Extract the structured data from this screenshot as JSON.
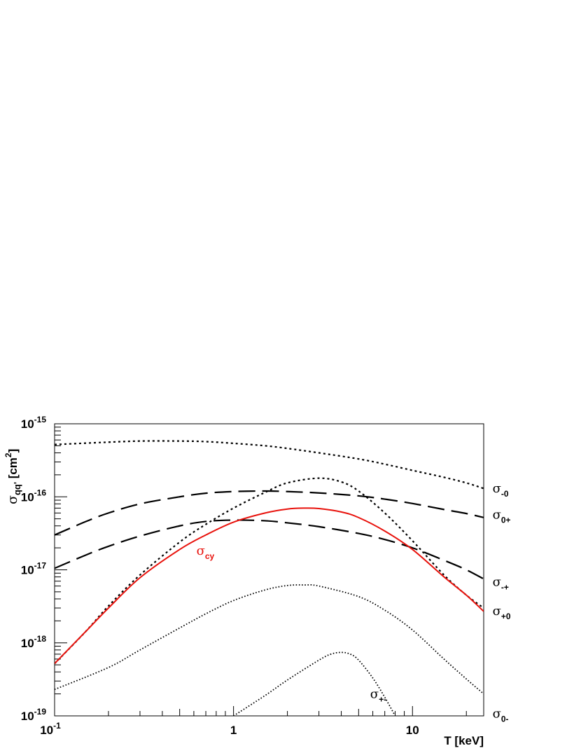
{
  "chart_data": {
    "type": "line",
    "title": "",
    "xlabel": "T [keV]",
    "ylabel": {
      "main": "σ",
      "sub": "qq'",
      "unit_prefix": " [cm",
      "unit_sup": "2",
      "unit_suffix": "]"
    },
    "x_scale": "log",
    "y_scale": "log",
    "xlim": [
      0.1,
      25
    ],
    "ylim": [
      1e-19,
      1e-15
    ],
    "grid": false,
    "x_tick_labels": [
      {
        "value": 0.1,
        "base": "10",
        "exp": "-1"
      },
      {
        "value": 1,
        "base": "1",
        "exp": ""
      },
      {
        "value": 10,
        "base": "10",
        "exp": ""
      }
    ],
    "y_tick_labels": [
      {
        "value": 1e-19,
        "base": "10",
        "exp": "-19"
      },
      {
        "value": 1e-18,
        "base": "10",
        "exp": "-18"
      },
      {
        "value": 1e-17,
        "base": "10",
        "exp": "-17"
      },
      {
        "value": 1e-16,
        "base": "10",
        "exp": "-16"
      },
      {
        "value": 1e-15,
        "base": "10",
        "exp": "-15"
      }
    ],
    "series": [
      {
        "id": "sigma-minus0",
        "label_main": "σ",
        "label_sub": "-0",
        "color": "#000000",
        "style": "dotted-short",
        "label_at": {
          "x": 28,
          "y": 1.15e-16
        },
        "x": [
          0.1,
          0.2,
          0.3,
          0.5,
          0.7,
          1,
          1.5,
          2,
          3,
          5,
          7,
          10,
          15,
          20,
          25
        ],
        "y": [
          5.2e-16,
          5.6e-16,
          5.8e-16,
          5.8e-16,
          5.7e-16,
          5.4e-16,
          5e-16,
          4.6e-16,
          4e-16,
          3.3e-16,
          2.8e-16,
          2.3e-16,
          1.85e-16,
          1.55e-16,
          1.3e-16
        ]
      },
      {
        "id": "sigma-0plus",
        "label_main": "σ",
        "label_sub": "0+",
        "color": "#000000",
        "style": "long-dash",
        "label_at": {
          "x": 28,
          "y": 5e-17
        },
        "x": [
          0.1,
          0.15,
          0.2,
          0.3,
          0.5,
          0.7,
          1,
          1.5,
          2,
          3,
          5,
          7,
          10,
          15,
          20,
          25
        ],
        "y": [
          3e-17,
          4.6e-17,
          6e-17,
          8e-17,
          1e-16,
          1.12e-16,
          1.18e-16,
          1.2e-16,
          1.18e-16,
          1.13e-16,
          1.03e-16,
          9.3e-17,
          8.1e-17,
          6.7e-17,
          5.9e-17,
          5.2e-17
        ]
      },
      {
        "id": "sigma-minusplus",
        "label_main": "σ",
        "label_sub": "-+",
        "color": "#000000",
        "style": "long-dash",
        "label_at": {
          "x": 28,
          "y": 6e-18
        },
        "x": [
          0.1,
          0.15,
          0.2,
          0.3,
          0.5,
          0.7,
          1,
          1.5,
          2,
          3,
          5,
          7,
          10,
          15,
          20,
          25
        ],
        "y": [
          1.05e-17,
          1.6e-17,
          2.1e-17,
          2.9e-17,
          4e-17,
          4.6e-17,
          4.8e-17,
          4.7e-17,
          4.4e-17,
          3.9e-17,
          3.15e-17,
          2.6e-17,
          2e-17,
          1.35e-17,
          1e-17,
          7.5e-18
        ]
      },
      {
        "id": "sigma-plus0",
        "label_main": "σ",
        "label_sub": "+0",
        "color": "#000000",
        "style": "dotted-short",
        "label_at": {
          "x": 28,
          "y": 2.4e-18
        },
        "x": [
          0.1,
          0.15,
          0.2,
          0.3,
          0.5,
          0.7,
          1,
          1.5,
          2,
          3,
          4,
          5,
          7,
          10,
          15,
          20,
          25
        ],
        "y": [
          5.2e-19,
          1.45e-18,
          3.2e-18,
          8.5e-18,
          2.4e-17,
          4.2e-17,
          7e-17,
          1.15e-16,
          1.55e-16,
          1.8e-16,
          1.6e-16,
          1.2e-16,
          6e-17,
          2.5e-17,
          8.5e-18,
          4.5e-18,
          3e-18
        ]
      },
      {
        "id": "sigma-0minus",
        "label_main": "σ",
        "label_sub": "0-",
        "color": "#000000",
        "style": "dotted-fine",
        "label_at": {
          "x": 28,
          "y": 9.5e-20
        },
        "x": [
          0.1,
          0.2,
          0.3,
          0.5,
          0.7,
          1,
          1.5,
          2,
          2.5,
          3,
          5,
          7,
          10,
          15,
          20,
          25
        ],
        "y": [
          2.3e-19,
          4.6e-19,
          8e-19,
          1.6e-18,
          2.5e-18,
          3.8e-18,
          5.3e-18,
          6.1e-18,
          6.2e-18,
          6e-18,
          4.3e-18,
          2.8e-18,
          1.5e-18,
          6e-19,
          3.2e-19,
          2e-19
        ]
      },
      {
        "id": "sigma-plusminus",
        "label_main": "σ",
        "label_sub": "+-",
        "color": "#000000",
        "style": "dotted-fine",
        "label_at": {
          "x": 5.8,
          "y": 1.75e-19
        },
        "x": [
          1.0,
          1.5,
          2,
          3,
          3.5,
          4,
          4.5,
          5,
          6,
          7,
          8
        ],
        "y": [
          1e-19,
          1.9e-19,
          3.1e-19,
          5.8e-19,
          7e-19,
          7.4e-19,
          7e-19,
          5.8e-19,
          3.3e-19,
          1.8e-19,
          1e-19
        ]
      },
      {
        "id": "sigma-cy",
        "label_main": "σ",
        "label_sub": "cy",
        "color": "#e8120c",
        "style": "solid",
        "label_at": {
          "x": 0.62,
          "y": 1.6e-17
        },
        "x": [
          0.1,
          0.15,
          0.2,
          0.3,
          0.5,
          0.7,
          1,
          1.5,
          2,
          2.5,
          3,
          4,
          5,
          7,
          10,
          15,
          20,
          25
        ],
        "y": [
          5.2e-19,
          1.45e-18,
          3e-18,
          7.8e-18,
          1.9e-17,
          3e-17,
          4.5e-17,
          6e-17,
          6.8e-17,
          7e-17,
          6.9e-17,
          6.2e-17,
          5.2e-17,
          3.4e-17,
          1.9e-17,
          8e-18,
          4.5e-18,
          2.7e-18
        ]
      }
    ]
  }
}
